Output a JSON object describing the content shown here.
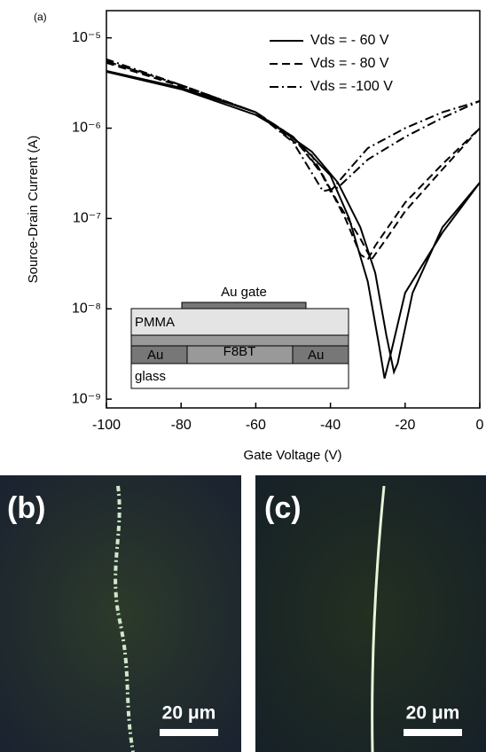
{
  "chart_data": {
    "type": "line",
    "panel_label": "(a)",
    "xlabel": "Gate Voltage (V)",
    "ylabel": "Source-Drain Current (A)",
    "xlim": [
      -100,
      0
    ],
    "xticks": [
      -100,
      -80,
      -60,
      -40,
      -20,
      0
    ],
    "ylim": [
      8e-10,
      2e-05
    ],
    "log_y": true,
    "yticks": [
      {
        "value": 1e-09,
        "label": "10⁻⁹"
      },
      {
        "value": 1e-08,
        "label": "10⁻⁸"
      },
      {
        "value": 1e-07,
        "label": "10⁻⁷"
      },
      {
        "value": 1e-06,
        "label": "10⁻⁶"
      },
      {
        "value": 1e-05,
        "label": "10⁻⁵"
      }
    ],
    "legend": "upper right",
    "series": [
      {
        "name": "Vds = - 60 V",
        "color": "#000000",
        "dash": "solid",
        "x": [
          -100,
          -80,
          -60,
          -50,
          -40,
          -35,
          -30,
          -27,
          -25.5,
          -24,
          -20,
          -10,
          0,
          -10,
          -18,
          -22,
          -23,
          -25,
          -28,
          -32,
          -38,
          -45,
          -60,
          -80,
          -100
        ],
        "values": [
          4.2e-06,
          2.7e-06,
          1.4e-06,
          8e-07,
          3e-07,
          1e-07,
          2e-08,
          4e-09,
          1.7e-09,
          3e-09,
          1.5e-08,
          7e-08,
          2.5e-07,
          8e-08,
          1.5e-08,
          2.5e-09,
          2e-09,
          5e-09,
          2.5e-08,
          8e-08,
          2.5e-07,
          5.5e-07,
          1.5e-06,
          2.8e-06,
          4.3e-06
        ]
      },
      {
        "name": "Vds = - 80 V",
        "color": "#000000",
        "dash": "dashed",
        "x": [
          -100,
          -80,
          -60,
          -50,
          -42,
          -36,
          -32,
          -30,
          -28,
          -20,
          -10,
          0,
          -10,
          -20,
          -25,
          -29,
          -32,
          -38,
          -45,
          -60,
          -80,
          -100
        ],
        "values": [
          5.3e-06,
          2.9e-06,
          1.5e-06,
          8e-07,
          3e-07,
          1e-07,
          4e-08,
          3.5e-08,
          5e-08,
          1.5e-07,
          4e-07,
          1e-06,
          3.5e-07,
          1.2e-07,
          6e-08,
          3.5e-08,
          6e-08,
          1.5e-07,
          5e-07,
          1.5e-06,
          3e-06,
          5.5e-06
        ]
      },
      {
        "name": "Vds = -100 V",
        "color": "#000000",
        "dash": "dashdot",
        "x": [
          -100,
          -80,
          -60,
          -50,
          -43,
          -40,
          -35,
          -30,
          -20,
          -10,
          0,
          -10,
          -20,
          -30,
          -38,
          -42,
          -50,
          -60,
          -80,
          -100
        ],
        "values": [
          5.5e-06,
          3e-06,
          1.5e-06,
          8e-07,
          3.5e-07,
          2e-07,
          3.5e-07,
          6e-07,
          1e-06,
          1.5e-06,
          2e-06,
          1.3e-06,
          8e-07,
          4.5e-07,
          2.2e-07,
          2e-07,
          7e-07,
          1.5e-06,
          3e-06,
          5.8e-06
        ]
      }
    ],
    "inset": {
      "gate": "Au gate",
      "dielectric": "PMMA",
      "semiconductor": "F8BT",
      "source": "Au",
      "drain": "Au",
      "substrate": "glass"
    }
  },
  "panels": [
    {
      "label": "(b)",
      "scale_bar": "20 μm"
    },
    {
      "label": "(c)",
      "scale_bar": "20 μm"
    }
  ]
}
